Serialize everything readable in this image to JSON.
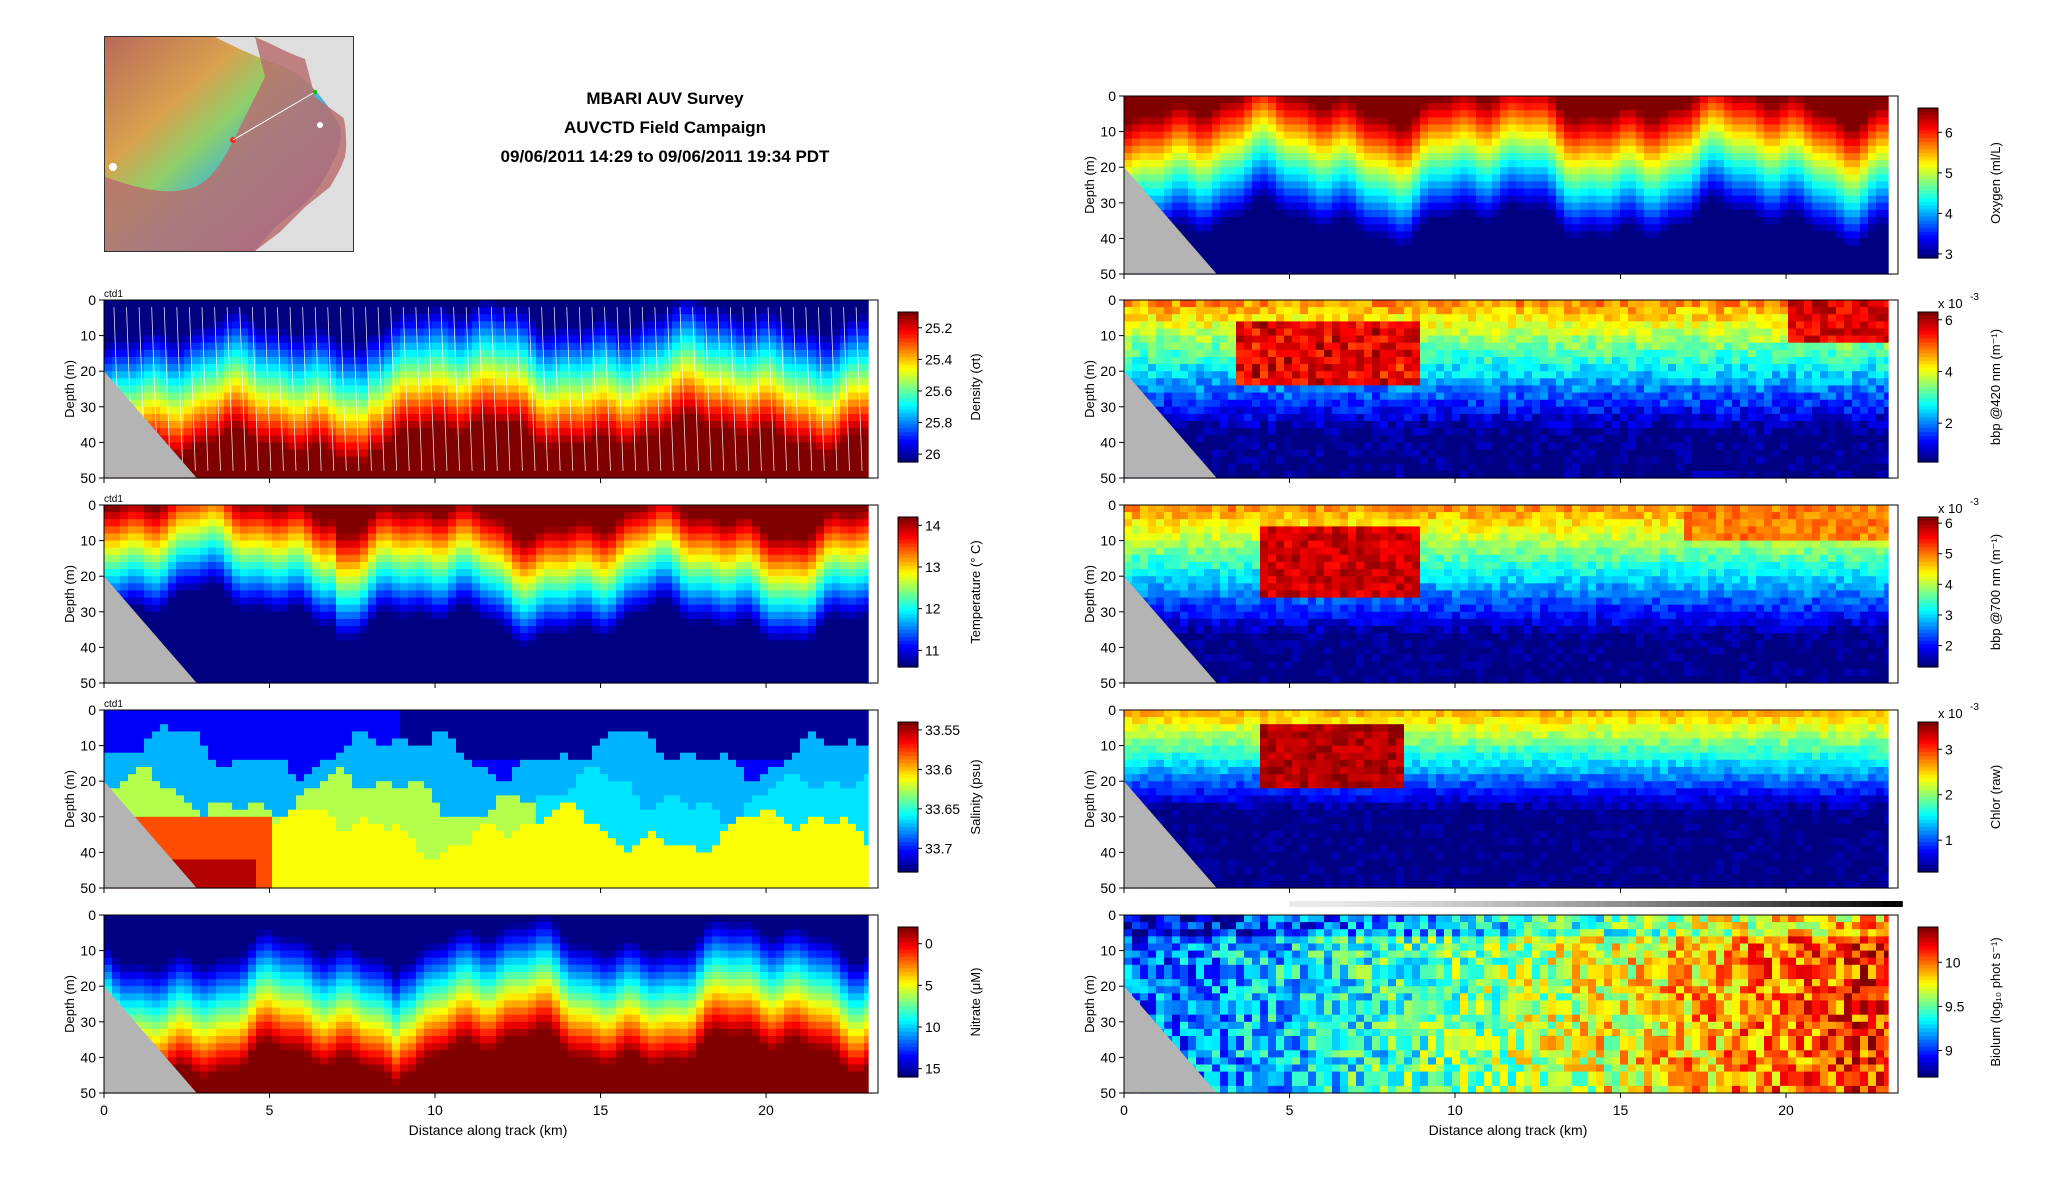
{
  "header": {
    "line1": "MBARI AUV Survey",
    "line2": "AUVCTD Field Campaign",
    "line3": "09/06/2011 14:29 to 09/06/2011 19:34 PDT"
  },
  "chart_data": [
    {
      "type": "heatmap",
      "name": "density",
      "tag": "ctd1",
      "ylabel": "Depth (m)",
      "xlabel": "",
      "xlim": [
        0,
        23.2
      ],
      "ylim": [
        0,
        50
      ],
      "xticks": [
        "0",
        "5",
        "10",
        "15",
        "20"
      ],
      "yticks": [
        "0",
        "10",
        "20",
        "30",
        "40",
        "50"
      ],
      "colorbar": {
        "label": "Density (σt)",
        "ticks": [
          "25.2",
          "25.4",
          "25.6",
          "25.8",
          "26"
        ],
        "range": [
          25.1,
          26.05
        ]
      },
      "profile_lines": true
    },
    {
      "type": "heatmap",
      "name": "temperature",
      "tag": "ctd1",
      "ylabel": "Depth (m)",
      "xlabel": "",
      "xlim": [
        0,
        23.2
      ],
      "ylim": [
        0,
        50
      ],
      "xticks": [
        "0",
        "5",
        "10",
        "15",
        "20"
      ],
      "yticks": [
        "0",
        "10",
        "20",
        "30",
        "40",
        "50"
      ],
      "colorbar": {
        "label": "Temperature (° C)",
        "ticks": [
          "14",
          "13",
          "12",
          "11"
        ],
        "range": [
          10.6,
          14.2
        ]
      }
    },
    {
      "type": "heatmap",
      "name": "salinity",
      "tag": "ctd1",
      "ylabel": "Depth (m)",
      "xlabel": "",
      "xlim": [
        0,
        23.2
      ],
      "ylim": [
        0,
        50
      ],
      "xticks": [
        "0",
        "5",
        "10",
        "15",
        "20"
      ],
      "yticks": [
        "0",
        "10",
        "20",
        "30",
        "40",
        "50"
      ],
      "colorbar": {
        "label": "Salinity (psu)",
        "ticks": [
          "33.55",
          "33.6",
          "33.65",
          "33.7"
        ],
        "range": [
          33.54,
          33.73
        ]
      }
    },
    {
      "type": "heatmap",
      "name": "nitrate",
      "tag": "",
      "ylabel": "Depth (m)",
      "xlabel": "Distance along track (km)",
      "xlim": [
        0,
        23.2
      ],
      "ylim": [
        0,
        50
      ],
      "xticks": [
        "0",
        "5",
        "10",
        "15",
        "20"
      ],
      "yticks": [
        "0",
        "10",
        "20",
        "30",
        "40",
        "50"
      ],
      "colorbar": {
        "label": "Nitrate (μM)",
        "ticks": [
          "0",
          "5",
          "10",
          "15"
        ],
        "range": [
          -2,
          16
        ]
      }
    },
    {
      "type": "heatmap",
      "name": "oxygen",
      "tag": "",
      "ylabel": "Depth (m)",
      "xlabel": "",
      "xlim": [
        0,
        23.2
      ],
      "ylim": [
        0,
        50
      ],
      "xticks": [
        "0",
        "5",
        "10",
        "15",
        "20"
      ],
      "yticks": [
        "0",
        "10",
        "20",
        "30",
        "40",
        "50"
      ],
      "colorbar": {
        "label": "Oxygen (ml/L)",
        "ticks": [
          "6",
          "5",
          "4",
          "3"
        ],
        "range": [
          2.9,
          6.6
        ]
      }
    },
    {
      "type": "heatmap",
      "name": "bbp420",
      "tag": "",
      "ylabel": "Depth (m)",
      "xlabel": "",
      "xlim": [
        0,
        23.2
      ],
      "ylim": [
        0,
        50
      ],
      "xticks": [
        "0",
        "5",
        "10",
        "15",
        "20"
      ],
      "yticks": [
        "0",
        "10",
        "20",
        "30",
        "40",
        "50"
      ],
      "colorbar": {
        "label": "bbp @420 nm (m⁻¹)",
        "ticks": [
          "6",
          "4",
          "2"
        ],
        "range": [
          0.5,
          6.3
        ],
        "multiplier": "x 10",
        "exponent": "-3"
      }
    },
    {
      "type": "heatmap",
      "name": "bbp700",
      "tag": "",
      "ylabel": "Depth (m)",
      "xlabel": "",
      "xlim": [
        0,
        23.2
      ],
      "ylim": [
        0,
        50
      ],
      "xticks": [
        "0",
        "5",
        "10",
        "15",
        "20"
      ],
      "yticks": [
        "0",
        "10",
        "20",
        "30",
        "40",
        "50"
      ],
      "colorbar": {
        "label": "bbp @700 nm (m⁻¹)",
        "ticks": [
          "6",
          "5",
          "4",
          "3",
          "2"
        ],
        "range": [
          1.3,
          6.2
        ],
        "multiplier": "x 10",
        "exponent": "-3"
      }
    },
    {
      "type": "heatmap",
      "name": "chlor",
      "tag": "",
      "ylabel": "Depth (m)",
      "xlabel": "",
      "xlim": [
        0,
        23.2
      ],
      "ylim": [
        0,
        50
      ],
      "xticks": [
        "0",
        "5",
        "10",
        "15",
        "20"
      ],
      "yticks": [
        "0",
        "10",
        "20",
        "30",
        "40",
        "50"
      ],
      "colorbar": {
        "label": "Chlor (raw)",
        "ticks": [
          "3",
          "2",
          "1"
        ],
        "range": [
          0.3,
          3.6
        ],
        "multiplier": "x 10",
        "exponent": "-3"
      }
    },
    {
      "type": "heatmap",
      "name": "biolum",
      "tag": "",
      "ylabel": "Depth (m)",
      "xlabel": "Distance along track (km)",
      "xlim": [
        0,
        23.2
      ],
      "ylim": [
        0,
        50
      ],
      "xticks": [
        "0",
        "5",
        "10",
        "15",
        "20"
      ],
      "yticks": [
        "0",
        "10",
        "20",
        "30",
        "40",
        "50"
      ],
      "colorbar": {
        "label": "Biolum (log₁₀ phot s⁻¹)",
        "ticks": [
          "10",
          "9.5",
          "9"
        ],
        "range": [
          8.7,
          10.4
        ]
      },
      "light_bar": true
    }
  ],
  "colors": {
    "seafloor": "#b4b4b4",
    "axis": "#000000"
  }
}
